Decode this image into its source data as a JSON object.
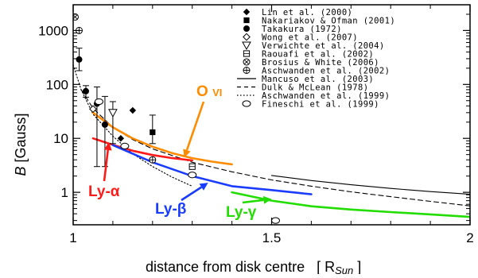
{
  "chart_data": {
    "type": "scatter",
    "xlabel": "distance from disk centre   [ R",
    "xlabel_sub": "Sun",
    "xlabel_end": " ]",
    "ylabel_italic": "B",
    "ylabel_rest": " [Gauss]",
    "xscale": "linear",
    "yscale": "log",
    "xlim": [
      1.0,
      2.0
    ],
    "ylim": [
      0.25,
      3000
    ],
    "x_ticks": [
      {
        "v": 1.0,
        "label": "1"
      },
      {
        "v": 1.5,
        "label": "1.5"
      },
      {
        "v": 2.0,
        "label": "2"
      }
    ],
    "y_ticks": [
      {
        "v": 1,
        "label": "1"
      },
      {
        "v": 10,
        "label": "10"
      },
      {
        "v": 100,
        "label": "100"
      },
      {
        "v": 1000,
        "label": "1000"
      }
    ],
    "grid": false,
    "legend_position": "top-right",
    "legend": [
      {
        "marker": "diamond-filled",
        "label": "Lin et al. (2000)"
      },
      {
        "marker": "square-filled",
        "label": "Nakariakov & Ofman (2001)"
      },
      {
        "marker": "circle-filled",
        "label": "Takakura (1972)"
      },
      {
        "marker": "diamond-open",
        "label": "Wong et al. (2007)"
      },
      {
        "marker": "triangle-down-open",
        "label": "Verwichte et al. (2004)"
      },
      {
        "marker": "square-open",
        "label": "Raouafi et al. (2002)"
      },
      {
        "marker": "circle-x",
        "label": "Brosius & White (2006)"
      },
      {
        "marker": "circle-plus",
        "label": "Aschwanden et al. (2002)"
      },
      {
        "marker": "line-solid",
        "label": "Mancuso et al. (2003)"
      },
      {
        "marker": "line-dashed",
        "label": "Dulk & McLean (1978)"
      },
      {
        "marker": "line-dotted",
        "label": "Aschwanden et al. (1999)"
      },
      {
        "marker": "ellipse-open",
        "label": "Fineschi et al. (1999)"
      }
    ],
    "points": [
      {
        "marker": "diamond-filled",
        "x": 1.12,
        "y": 10
      },
      {
        "marker": "diamond-filled",
        "x": 1.15,
        "y": 33
      },
      {
        "marker": "square-filled",
        "x": 1.2,
        "y": 13,
        "yerr": [
          8,
          27
        ]
      },
      {
        "marker": "circle-filled",
        "x": 1.015,
        "y": 290,
        "yerr": [
          180,
          470
        ]
      },
      {
        "marker": "circle-filled",
        "x": 1.032,
        "y": 75,
        "yerr": [
          58,
          95
        ]
      },
      {
        "marker": "circle-filled",
        "x": 1.06,
        "y": 44,
        "yerr": [
          3,
          90
        ]
      },
      {
        "marker": "circle-filled",
        "x": 1.08,
        "y": 18,
        "yerr": [
          3,
          60
        ]
      },
      {
        "marker": "diamond-open",
        "x": 1.05,
        "y": 35
      },
      {
        "marker": "triangle-down-open",
        "x": 1.1,
        "y": 30,
        "yerr": [
          8,
          48
        ]
      },
      {
        "marker": "square-open",
        "x": 1.3,
        "y": 3.0
      },
      {
        "marker": "circle-x",
        "x": 1.005,
        "y": 1780
      },
      {
        "marker": "circle-plus",
        "x": 1.015,
        "y": 1000
      },
      {
        "marker": "circle-plus",
        "x": 1.2,
        "y": 4.0
      },
      {
        "marker": "ellipse-open",
        "x": 1.065,
        "y": 48
      },
      {
        "marker": "ellipse-open",
        "x": 1.13,
        "y": 7.2
      },
      {
        "marker": "ellipse-open",
        "x": 1.3,
        "y": 2.1
      },
      {
        "marker": "ellipse-open",
        "x": 1.51,
        "y": 0.3
      }
    ],
    "series": [
      {
        "name": "Mancuso et al. (2003)",
        "style": "solid-thin",
        "color": "#000000",
        "x": [
          1.5,
          1.6,
          1.7,
          1.8,
          1.9,
          2.0
        ],
        "y": [
          2.05,
          1.65,
          1.38,
          1.18,
          1.03,
          0.92
        ]
      },
      {
        "name": "Dulk & McLean (1978)",
        "style": "dashed",
        "color": "#000000",
        "x": [
          1.02,
          1.05,
          1.1,
          1.15,
          1.2,
          1.3,
          1.4,
          1.5,
          1.6,
          1.7,
          1.8,
          1.9,
          2.0
        ],
        "y": [
          80,
          36,
          16,
          9.5,
          6.4,
          3.6,
          2.4,
          1.7,
          1.3,
          1.02,
          0.83,
          0.68,
          0.56
        ]
      },
      {
        "name": "Aschwanden et al. (1999)",
        "style": "dotted",
        "color": "#000000",
        "x": [
          1.0,
          1.02,
          1.05,
          1.1,
          1.15,
          1.2,
          1.25,
          1.3
        ],
        "y": [
          230,
          80,
          28,
          11,
          5.2,
          3.0,
          1.9,
          1.3
        ]
      },
      {
        "name": "O VI",
        "style": "thick",
        "color": "#ff8c00",
        "x": [
          1.05,
          1.1,
          1.15,
          1.2,
          1.25,
          1.3,
          1.35,
          1.4
        ],
        "y": [
          30,
          16,
          10,
          7,
          5.3,
          4.3,
          3.7,
          3.3
        ]
      },
      {
        "name": "Ly-α",
        "style": "thick",
        "color": "#ff1a1a",
        "x": [
          1.05,
          1.1,
          1.15,
          1.2,
          1.25,
          1.3
        ],
        "y": [
          10,
          7.6,
          5.9,
          4.9,
          4.3,
          3.9
        ]
      },
      {
        "name": "Ly-β",
        "style": "thick",
        "color": "#1a3cff",
        "x": [
          1.1,
          1.2,
          1.3,
          1.4,
          1.5,
          1.6
        ],
        "y": [
          7.5,
          3.6,
          2.0,
          1.3,
          1.1,
          0.92
        ]
      },
      {
        "name": "Ly-γ",
        "style": "thick",
        "color": "#22dd00",
        "x": [
          1.4,
          1.5,
          1.6,
          1.7,
          1.8,
          1.9,
          2.0
        ],
        "y": [
          1.0,
          0.7,
          0.55,
          0.48,
          0.43,
          0.39,
          0.35
        ]
      }
    ],
    "annotations": [
      {
        "text": "O ",
        "suffix": "VI",
        "color": "#ff8c00",
        "arrow_to": [
          1.28,
          4.4
        ]
      },
      {
        "text": "Ly-",
        "suffix": "α",
        "color": "#ff1a1a",
        "arrow_to": [
          1.09,
          8.5
        ]
      },
      {
        "text": "Ly-",
        "suffix": "β",
        "color": "#1a3cff",
        "arrow_to": [
          1.34,
          1.5
        ]
      },
      {
        "text": "Ly-",
        "suffix": "γ",
        "color": "#22dd00",
        "arrow_to": [
          1.5,
          0.75
        ]
      }
    ]
  }
}
